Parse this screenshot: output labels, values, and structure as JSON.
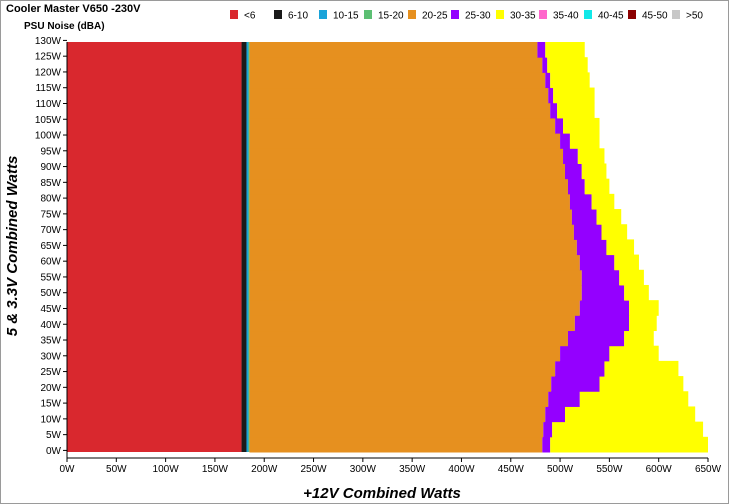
{
  "chart_data": {
    "type": "heatmap",
    "title": "Cooler Master V650 -230V",
    "subtitle": "PSU Noise (dBA)",
    "xlabel": "+12V Combined Watts",
    "ylabel": "5 & 3.3V Combined Watts",
    "xlim": [
      0,
      650
    ],
    "ylim": [
      0,
      130
    ],
    "x_ticks": [
      "0W",
      "50W",
      "100W",
      "150W",
      "200W",
      "250W",
      "300W",
      "350W",
      "400W",
      "450W",
      "500W",
      "550W",
      "600W",
      "650W"
    ],
    "y_ticks": [
      "0W",
      "5W",
      "10W",
      "15W",
      "20W",
      "25W",
      "30W",
      "35W",
      "40W",
      "45W",
      "50W",
      "55W",
      "60W",
      "65W",
      "70W",
      "75W",
      "80W",
      "85W",
      "90W",
      "95W",
      "100W",
      "105W",
      "110W",
      "115W",
      "120W",
      "125W",
      "130W"
    ],
    "legend": [
      {
        "label": "<6",
        "color": "#d9282e"
      },
      {
        "label": "6-10",
        "color": "#1a1a1a"
      },
      {
        "label": "10-15",
        "color": "#1aa3d9"
      },
      {
        "label": "15-20",
        "color": "#5cbf73"
      },
      {
        "label": "20-25",
        "color": "#e6901f"
      },
      {
        "label": "25-30",
        "color": "#9400ff"
      },
      {
        "label": "30-35",
        "color": "#ffff00"
      },
      {
        "label": "35-40",
        "color": "#ff66cc"
      },
      {
        "label": "40-45",
        "color": "#11e8e8"
      },
      {
        "label": "45-50",
        "color": "#8b0000"
      },
      {
        "label": ">50",
        "color": "#c8c8c8"
      }
    ],
    "legend_position": "top-right",
    "boundaries": {
      "lt6_max_x": 177,
      "band_6_10": [
        177,
        182
      ],
      "band_10_15": [
        182,
        184
      ],
      "band_15_20": [
        184,
        185
      ],
      "load_y": [
        0,
        5,
        10,
        15,
        20,
        25,
        30,
        35,
        40,
        45,
        50,
        55,
        60,
        65,
        70,
        75,
        80,
        85,
        90,
        95,
        100,
        105,
        110,
        115,
        120,
        125,
        130
      ],
      "x_20_25_end": [
        482,
        483,
        485,
        488,
        491,
        495,
        500,
        508,
        515,
        520,
        522,
        522,
        520,
        517,
        514,
        512,
        510,
        508,
        505,
        503,
        500,
        495,
        490,
        488,
        485,
        482,
        477
      ],
      "x_25_30_end": [
        490,
        492,
        505,
        520,
        540,
        545,
        550,
        565,
        570,
        570,
        565,
        560,
        555,
        547,
        542,
        537,
        532,
        525,
        522,
        518,
        510,
        503,
        497,
        493,
        490,
        487,
        485
      ],
      "x_30_35_end": [
        650,
        645,
        637,
        630,
        625,
        620,
        600,
        595,
        598,
        600,
        590,
        585,
        580,
        575,
        568,
        562,
        555,
        550,
        547,
        545,
        540,
        540,
        535,
        535,
        530,
        528,
        525
      ]
    }
  }
}
